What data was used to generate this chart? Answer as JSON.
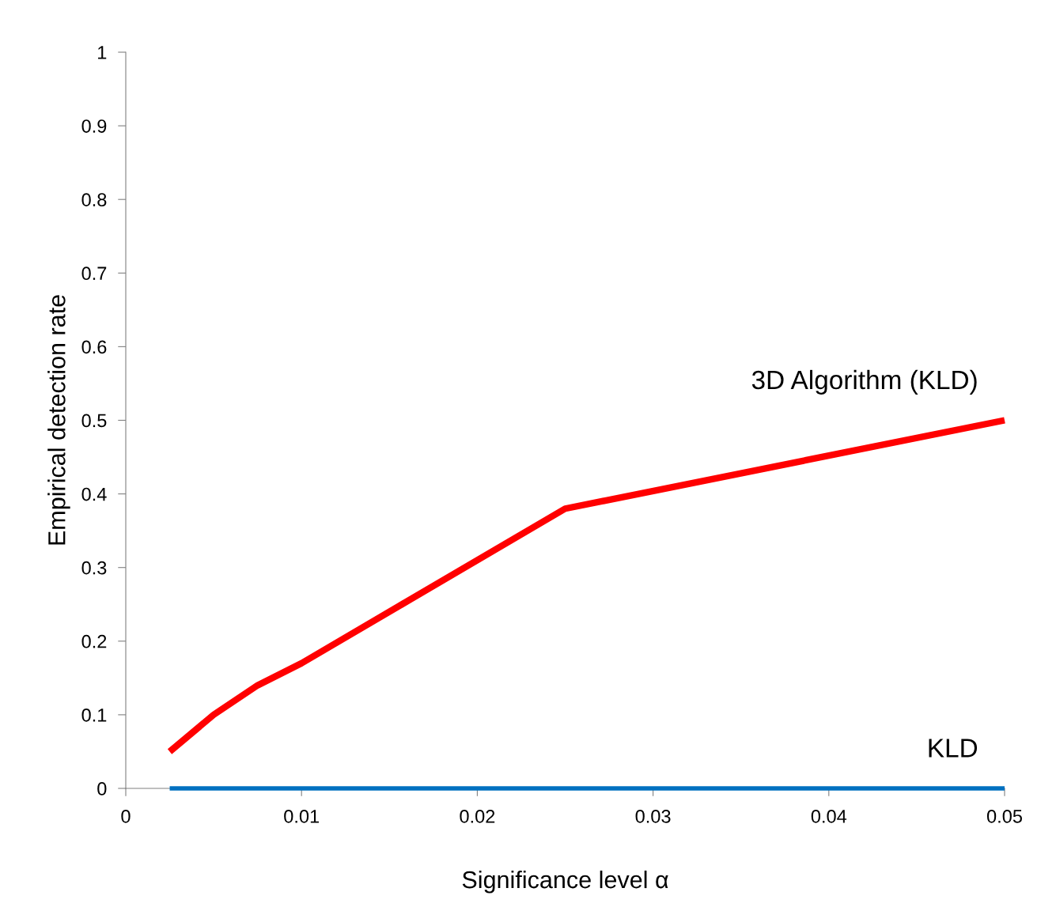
{
  "chart_data": {
    "type": "line",
    "xlabel": "Significance level α",
    "ylabel": "Empirical detection rate",
    "x": [
      0.0025,
      0.005,
      0.0075,
      0.01,
      0.025,
      0.05
    ],
    "series": [
      {
        "name": "3D Algorithm (KLD)",
        "color": "#ff0000",
        "values": [
          0.05,
          0.1,
          0.14,
          0.17,
          0.38,
          0.5
        ]
      },
      {
        "name": "KLD",
        "color": "#0070c0",
        "values": [
          0,
          0,
          0,
          0,
          0,
          0
        ]
      }
    ],
    "xlim": [
      0,
      0.05
    ],
    "xticks": [
      0,
      0.01,
      0.02,
      0.03,
      0.04,
      0.05
    ],
    "ylim": [
      0,
      1
    ],
    "yticks": [
      0,
      0.1,
      0.2,
      0.3,
      0.4,
      0.5,
      0.6,
      0.7,
      0.8,
      0.9,
      1
    ],
    "grid": false,
    "legend": false,
    "marker": "none",
    "line_style": "solid"
  }
}
